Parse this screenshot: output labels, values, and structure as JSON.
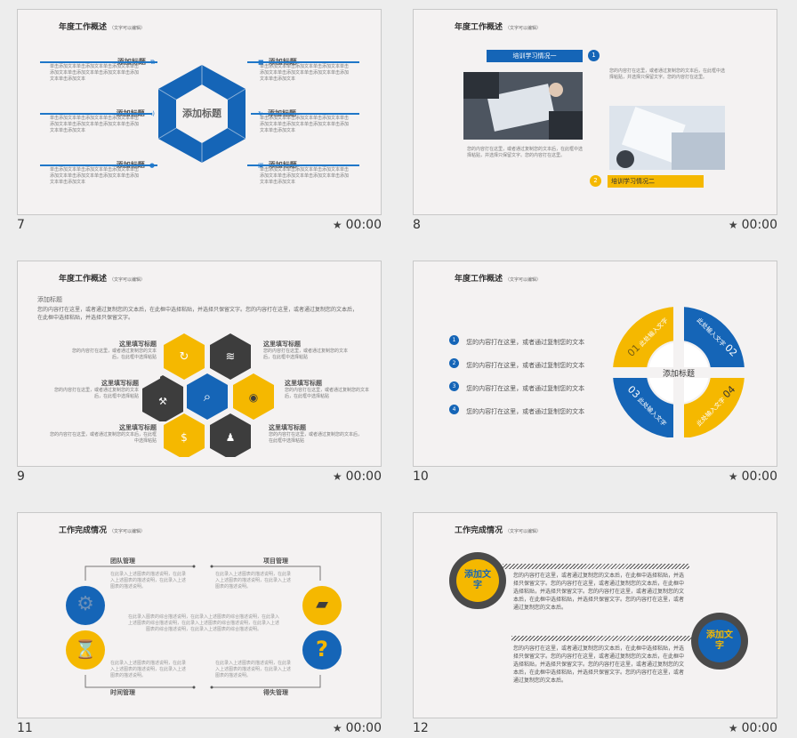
{
  "panel": {
    "timer": "00:00"
  },
  "slides": [
    {
      "number": "7",
      "title": "年度工作概述",
      "note": "（文字可以编辑）",
      "center": "添加标题",
      "items": [
        {
          "title": "添加标题",
          "text": "单击添加文本单击添加文本单击添加文本单击添加文本单击添加文本单击添加文本单击添加文本单击添加文本"
        },
        {
          "title": "添加标题",
          "text": "单击添加文本单击添加文本单击添加文本单击添加文本单击添加文本单击添加文本单击添加文本单击添加文本"
        },
        {
          "title": "添加标题",
          "text": "单击添加文本单击添加文本单击添加文本单击添加文本单击添加文本单击添加文本单击添加文本单击添加文本"
        },
        {
          "title": "添加标题",
          "text": "单击添加文本单击添加文本单击添加文本单击添加文本单击添加文本单击添加文本单击添加文本单击添加文本"
        },
        {
          "title": "添加标题",
          "text": "单击添加文本单击添加文本单击添加文本单击添加文本单击添加文本单击添加文本单击添加文本单击添加文本"
        },
        {
          "title": "添加标题",
          "text": "单击添加文本单击添加文本单击添加文本单击添加文本单击添加文本单击添加文本单击添加文本单击添加文本"
        }
      ]
    },
    {
      "number": "8",
      "title": "年度工作概述",
      "note": "（文字可以编辑）",
      "label1": "培训学习情况一",
      "label2": "培训学习情况二",
      "badge1": "1",
      "badge2": "2",
      "text1": "您的内容打在这里，或者通过复制您的文本后，在此框中选择粘贴，并选择只保留文字。您的内容打在这里。",
      "text2": "您的内容打在这里，或者通过复制您的文本后，在此框中选择粘贴，并选择只保留文字。您的内容打在这里。"
    },
    {
      "number": "9",
      "title": "年度工作概述",
      "note": "（文字可以编辑）",
      "subtitle": "添加标题",
      "intro": "您的内容打在这里，或者通过复制您的文本后，在此框中选择粘贴，并选择只保留文字。您的内容打在这里，或者通过复制您的文本后，在此框中选择粘贴，并选择只保留文字。",
      "items": [
        {
          "title": "这里填写标题",
          "text": "您的内容打在这里，或者通过复制您的文本后，在此框中选择粘贴"
        },
        {
          "title": "这里填写标题",
          "text": "您的内容打在这里，或者通过复制您的文本后，在此框中选择粘贴"
        },
        {
          "title": "这里填写标题",
          "text": "您的内容打在这里，或者通过复制您的文本后，在此框中选择粘贴"
        },
        {
          "title": "这里填写标题",
          "text": "您的内容打在这里，或者通过复制您的文本后，在此框中选择粘贴"
        },
        {
          "title": "这里填写标题",
          "text": "您的内容打在这里，或者通过复制您的文本后，在此框中选择粘贴"
        },
        {
          "title": "这里填写标题",
          "text": "您的内容打在这里，或者通过复制您的文本后，在此框中选择粘贴"
        }
      ]
    },
    {
      "number": "10",
      "title": "年度工作概述",
      "note": "（文字可以编辑）",
      "center": "添加标题",
      "list": [
        "您的内容打在这里，或者通过复制您的文本",
        "您的内容打在这里，或者通过复制您的文本",
        "您的内容打在这里，或者通过复制您的文本",
        "您的内容打在这里，或者通过复制您的文本"
      ],
      "list_nums": [
        "1",
        "2",
        "3",
        "4"
      ],
      "segments": [
        {
          "num": "01",
          "label": "此处输入文字"
        },
        {
          "num": "02",
          "label": "此处输入文字"
        },
        {
          "num": "03",
          "label": "此处输入文字"
        },
        {
          "num": "04",
          "label": "此处输入文字"
        }
      ]
    },
    {
      "number": "11",
      "title": "工作完成情况",
      "note": "（文字可以编辑）",
      "labels": [
        "团队管理",
        "项目管理",
        "时间管理",
        "得失管理"
      ],
      "desc": "在此录入上述图表的描述说明，在此录入上述图表的描述说明，在此录入上述图表的描述说明。",
      "center_text": "在此录入图表的综合描述说明，在此录入上述图表的综合描述说明，在此录入上述图表的综合描述说明，在此录入上述图表的综合描述说明，在此录入上述图表的综合描述说明，在此录入上述图表的综合描述说明。"
    },
    {
      "number": "12",
      "title": "工作完成情况",
      "note": "（文字可以编辑）",
      "circle1": "添加文字",
      "circle2": "添加文字",
      "text1": "您的内容打在这里，或者通过复制您的文本后，在此框中选择粘贴，并选择只保留文字。您的内容打在这里，或者通过复制您的文本后，在此框中选择粘贴，并选择只保留文字。您的内容打在这里，或者通过复制您的文本后，在此框中选择粘贴，并选择只保留文字。您的内容打在这里，或者通过复制您的文本后。",
      "text2": "您的内容打在这里，或者通过复制您的文本后，在此框中选择粘贴，并选择只保留文字。您的内容打在这里，或者通过复制您的文本后，在此框中选择粘贴，并选择只保留文字。您的内容打在这里，或者通过复制您的文本后，在此框中选择粘贴，并选择只保留文字。您的内容打在这里，或者通过复制您的文本后。"
    }
  ],
  "colors": {
    "blue": "#1565b7",
    "yellow": "#f5b800",
    "dark": "#3d3d3d"
  }
}
